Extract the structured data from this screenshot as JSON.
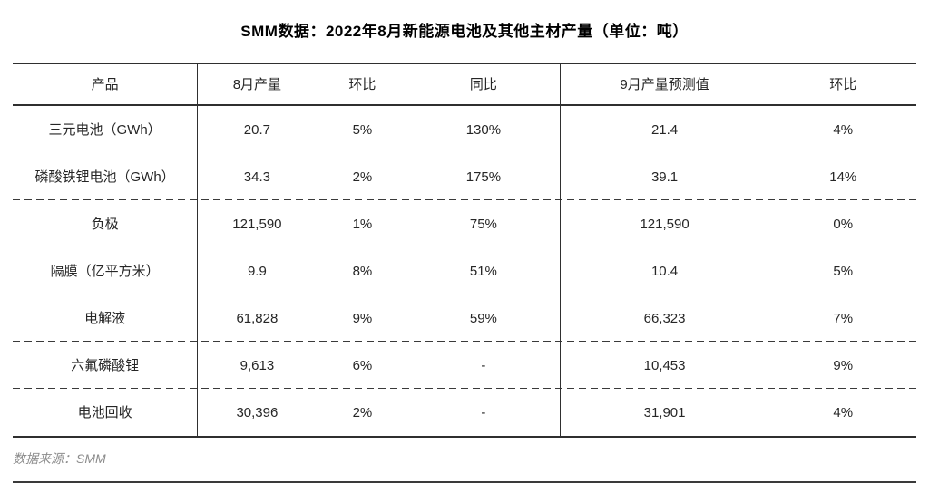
{
  "title": "SMM数据：2022年8月新能源电池及其他主材产量（单位：吨）",
  "footer": {
    "source": "数据来源：SMM"
  },
  "colors": {
    "text": "#262626",
    "title": "#000000",
    "border": "#2f2f2f",
    "muted_text": "#8c8c8c",
    "background": "#ffffff"
  },
  "chart_data": {
    "type": "table",
    "title": "SMM数据：2022年8月新能源电池及其他主材产量（单位：吨）",
    "unit": "吨",
    "columns": [
      "产品",
      "8月产量",
      "环比",
      "同比",
      "9月产量预测值",
      "环比"
    ],
    "rows": [
      [
        "三元电池（GWh）",
        "20.7",
        "5%",
        "130%",
        "21.4",
        "4%"
      ],
      [
        "磷酸铁锂电池（GWh）",
        "34.3",
        "2%",
        "175%",
        "39.1",
        "14%"
      ],
      [
        "负极",
        "121,590",
        "1%",
        "75%",
        "121,590",
        "0%"
      ],
      [
        "隔膜（亿平方米）",
        "9.9",
        "8%",
        "51%",
        "10.4",
        "5%"
      ],
      [
        "电解液",
        "61,828",
        "9%",
        "59%",
        "66,323",
        "7%"
      ],
      [
        "六氟磷酸锂",
        "9,613",
        "6%",
        "-",
        "10,453",
        "9%"
      ],
      [
        "电池回收",
        "30,396",
        "2%",
        "-",
        "31,901",
        "4%"
      ]
    ],
    "source": "数据来源：SMM",
    "layout": {
      "group_headers": [
        "8月 (August actual)",
        "9月 (September forecast)"
      ],
      "dashed_separators_after_rows": [
        2,
        5,
        6
      ],
      "grid": "vertical dividers after column 1 and column 4"
    }
  }
}
